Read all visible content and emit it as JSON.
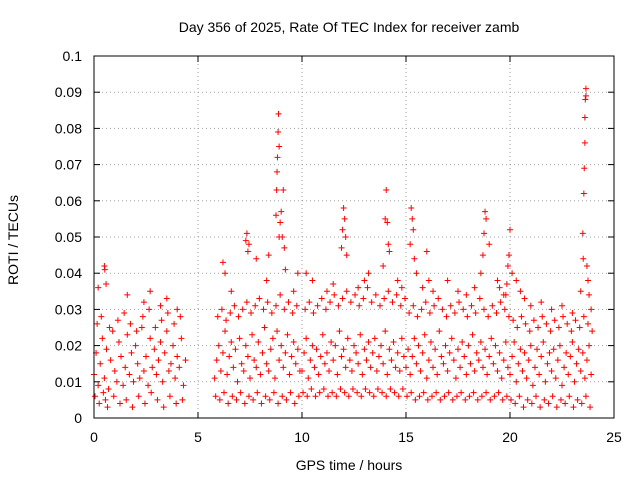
{
  "chart_data": {
    "type": "scatter",
    "title": "Day 356 of 2025, Rate Of TEC Index for receiver zamb",
    "xlabel": "GPS time / hours",
    "ylabel": "ROTI / TECUs",
    "xlim": [
      0,
      25
    ],
    "ylim": [
      0,
      0.1
    ],
    "x_ticks": [
      "0",
      "5",
      "10",
      "15",
      "20",
      "25"
    ],
    "y_ticks": [
      "0",
      "0.01",
      "0.02",
      "0.03",
      "0.04",
      "0.05",
      "0.06",
      "0.07",
      "0.08",
      "0.09",
      "0.1"
    ],
    "grid": true,
    "marker": "plus",
    "series": [
      {
        "color": "#ff0000",
        "x": [
          0.0,
          0.1,
          0.2,
          0.3,
          0.4,
          0.5,
          0.6,
          0.7,
          0.8,
          0.9,
          1.0,
          1.1,
          1.2,
          1.3,
          1.4,
          1.5,
          1.6,
          1.7,
          1.8,
          1.9,
          2.0,
          2.1,
          2.2,
          2.3,
          2.4,
          2.5,
          2.6,
          2.7,
          2.8,
          2.9,
          3.0,
          3.1,
          3.2,
          3.3,
          3.4,
          3.5,
          3.6,
          3.7,
          3.8,
          3.9,
          4.0,
          4.1,
          4.2,
          4.3,
          4.4,
          0.05,
          0.25,
          0.45,
          0.55,
          0.65,
          0.95,
          1.25,
          1.55,
          1.85,
          2.15,
          2.45,
          2.75,
          3.05,
          3.35,
          3.65,
          3.95,
          4.25,
          0.15,
          0.35,
          0.75,
          1.15,
          1.45,
          1.75,
          2.05,
          2.35,
          2.65,
          2.95,
          3.25,
          3.55,
          3.85,
          4.15,
          0.2,
          0.5,
          0.52,
          0.58,
          1.6,
          2.4,
          2.7,
          3.2,
          3.5,
          4.0,
          5.8,
          5.9,
          6.0,
          6.1,
          6.2,
          6.3,
          6.4,
          6.5,
          6.6,
          6.7,
          6.8,
          6.9,
          7.0,
          7.1,
          7.2,
          7.3,
          7.4,
          7.5,
          7.6,
          7.7,
          7.8,
          7.9,
          8.0,
          8.1,
          8.2,
          8.3,
          8.4,
          8.5,
          8.6,
          8.7,
          8.8,
          8.9,
          9.0,
          9.1,
          9.2,
          9.3,
          9.4,
          9.5,
          9.6,
          9.7,
          9.8,
          9.9,
          5.85,
          6.05,
          6.25,
          6.45,
          6.65,
          6.85,
          7.05,
          7.25,
          7.45,
          7.65,
          7.85,
          8.05,
          8.25,
          8.45,
          8.65,
          8.85,
          9.05,
          9.25,
          9.45,
          9.65,
          9.85,
          5.95,
          6.15,
          6.35,
          6.55,
          6.75,
          6.95,
          7.15,
          7.35,
          7.55,
          7.75,
          7.95,
          8.15,
          8.35,
          8.55,
          8.75,
          8.95,
          9.15,
          9.35,
          9.55,
          9.75,
          6.2,
          6.3,
          6.6,
          7.3,
          7.35,
          7.4,
          7.45,
          7.8,
          8.3,
          8.4,
          8.75,
          8.78,
          8.8,
          8.82,
          8.85,
          8.87,
          8.9,
          8.9,
          8.95,
          9.0,
          9.05,
          9.1,
          9.15,
          9.2,
          9.6,
          9.8,
          10.0,
          10.1,
          10.2,
          10.3,
          10.4,
          10.5,
          10.6,
          10.7,
          10.8,
          10.9,
          11.0,
          11.1,
          11.2,
          11.3,
          11.4,
          11.5,
          11.6,
          11.7,
          11.8,
          11.9,
          12.0,
          12.1,
          12.2,
          12.3,
          12.4,
          12.5,
          12.6,
          12.7,
          12.8,
          12.9,
          13.0,
          13.1,
          13.2,
          13.3,
          13.4,
          13.5,
          13.6,
          13.7,
          13.8,
          13.9,
          14.0,
          14.1,
          14.2,
          14.3,
          14.4,
          14.5,
          14.6,
          14.7,
          14.8,
          14.9,
          10.05,
          10.25,
          10.45,
          10.65,
          10.85,
          11.05,
          11.25,
          11.45,
          11.65,
          11.85,
          12.05,
          12.25,
          12.45,
          12.65,
          12.85,
          13.05,
          13.25,
          13.45,
          13.65,
          13.85,
          14.05,
          14.25,
          14.45,
          14.65,
          14.85,
          10.15,
          10.35,
          10.55,
          10.75,
          10.95,
          11.15,
          11.35,
          11.55,
          11.75,
          11.95,
          12.15,
          12.35,
          12.55,
          12.75,
          12.95,
          13.15,
          13.35,
          13.55,
          13.75,
          13.95,
          14.15,
          14.35,
          14.55,
          14.75,
          14.95,
          10.2,
          10.5,
          11.2,
          11.5,
          11.9,
          11.95,
          12.0,
          12.05,
          12.1,
          12.15,
          12.7,
          13.0,
          13.2,
          13.9,
          14.0,
          14.05,
          14.1,
          14.15,
          14.2,
          14.6,
          14.8,
          15.0,
          15.1,
          15.2,
          15.3,
          15.4,
          15.5,
          15.6,
          15.7,
          15.8,
          15.9,
          16.0,
          16.1,
          16.2,
          16.3,
          16.4,
          16.5,
          16.6,
          16.7,
          16.8,
          16.9,
          17.0,
          17.1,
          17.2,
          17.3,
          17.4,
          17.5,
          17.6,
          17.7,
          17.8,
          17.9,
          18.0,
          18.1,
          18.2,
          18.3,
          18.4,
          18.5,
          18.6,
          18.7,
          18.8,
          18.9,
          19.0,
          19.1,
          19.2,
          19.3,
          19.4,
          19.5,
          19.6,
          19.7,
          19.8,
          19.9,
          15.05,
          15.25,
          15.45,
          15.65,
          15.85,
          16.05,
          16.25,
          16.45,
          16.65,
          16.85,
          17.05,
          17.25,
          17.45,
          17.65,
          17.85,
          18.05,
          18.25,
          18.45,
          18.65,
          18.85,
          19.05,
          19.25,
          19.45,
          19.65,
          19.85,
          15.15,
          15.35,
          15.55,
          15.75,
          15.95,
          16.15,
          16.35,
          16.55,
          16.75,
          16.95,
          17.15,
          17.35,
          17.55,
          17.75,
          17.95,
          18.15,
          18.35,
          18.55,
          18.75,
          18.95,
          19.15,
          19.35,
          19.55,
          19.75,
          19.95,
          15.2,
          15.25,
          15.3,
          15.35,
          15.4,
          15.5,
          15.8,
          16.0,
          16.1,
          16.3,
          17.0,
          17.5,
          17.9,
          18.3,
          18.6,
          18.7,
          18.75,
          18.8,
          18.85,
          19.0,
          19.4,
          19.5,
          19.7,
          20.0,
          20.1,
          20.2,
          20.3,
          20.4,
          20.5,
          20.6,
          20.7,
          20.8,
          20.9,
          21.0,
          21.1,
          21.2,
          21.3,
          21.4,
          21.5,
          21.6,
          21.7,
          21.8,
          21.9,
          22.0,
          22.1,
          22.2,
          22.3,
          22.4,
          22.5,
          22.6,
          22.7,
          22.8,
          22.9,
          23.0,
          23.1,
          23.2,
          23.3,
          23.4,
          23.5,
          23.6,
          23.7,
          23.8,
          23.9,
          20.05,
          20.25,
          20.45,
          20.65,
          20.85,
          21.05,
          21.25,
          21.45,
          21.65,
          21.85,
          22.05,
          22.25,
          22.45,
          22.65,
          22.85,
          23.05,
          23.25,
          23.45,
          23.65,
          23.85,
          20.15,
          20.35,
          20.55,
          20.75,
          20.95,
          21.15,
          21.35,
          21.55,
          21.75,
          21.95,
          22.15,
          22.35,
          22.55,
          22.75,
          22.95,
          23.15,
          23.35,
          23.55,
          23.75,
          23.95,
          19.8,
          19.85,
          19.9,
          19.95,
          20.0,
          20.1,
          20.3,
          20.5,
          20.7,
          21.0,
          21.5,
          22.0,
          22.5,
          23.0,
          23.4,
          23.5,
          23.52,
          23.55,
          23.57,
          23.6,
          23.6,
          23.62,
          23.65,
          23.65,
          23.7,
          23.75,
          23.8,
          23.9
        ],
        "y": [
          0.012,
          0.018,
          0.009,
          0.015,
          0.022,
          0.011,
          0.019,
          0.008,
          0.016,
          0.024,
          0.013,
          0.01,
          0.021,
          0.017,
          0.009,
          0.014,
          0.023,
          0.012,
          0.018,
          0.01,
          0.02,
          0.015,
          0.011,
          0.025,
          0.013,
          0.017,
          0.009,
          0.022,
          0.014,
          0.019,
          0.012,
          0.016,
          0.021,
          0.01,
          0.018,
          0.024,
          0.013,
          0.015,
          0.02,
          0.011,
          0.017,
          0.014,
          0.022,
          0.009,
          0.016,
          0.006,
          0.004,
          0.007,
          0.005,
          0.003,
          0.006,
          0.004,
          0.005,
          0.003,
          0.006,
          0.004,
          0.007,
          0.005,
          0.003,
          0.006,
          0.004,
          0.005,
          0.026,
          0.028,
          0.025,
          0.027,
          0.029,
          0.026,
          0.024,
          0.028,
          0.03,
          0.025,
          0.027,
          0.029,
          0.026,
          0.028,
          0.036,
          0.042,
          0.041,
          0.037,
          0.034,
          0.032,
          0.035,
          0.031,
          0.033,
          0.03,
          0.011,
          0.016,
          0.02,
          0.013,
          0.018,
          0.024,
          0.012,
          0.017,
          0.021,
          0.014,
          0.019,
          0.01,
          0.022,
          0.015,
          0.013,
          0.02,
          0.017,
          0.011,
          0.023,
          0.016,
          0.014,
          0.021,
          0.012,
          0.018,
          0.025,
          0.015,
          0.013,
          0.019,
          0.022,
          0.011,
          0.024,
          0.016,
          0.02,
          0.014,
          0.018,
          0.023,
          0.012,
          0.017,
          0.021,
          0.015,
          0.019,
          0.013,
          0.006,
          0.005,
          0.007,
          0.004,
          0.006,
          0.005,
          0.007,
          0.004,
          0.006,
          0.005,
          0.007,
          0.004,
          0.006,
          0.005,
          0.007,
          0.004,
          0.006,
          0.005,
          0.007,
          0.004,
          0.006,
          0.028,
          0.03,
          0.027,
          0.029,
          0.031,
          0.028,
          0.03,
          0.032,
          0.029,
          0.031,
          0.033,
          0.03,
          0.032,
          0.029,
          0.031,
          0.034,
          0.03,
          0.032,
          0.029,
          0.031,
          0.043,
          0.04,
          0.035,
          0.049,
          0.051,
          0.046,
          0.048,
          0.044,
          0.038,
          0.045,
          0.056,
          0.063,
          0.068,
          0.072,
          0.079,
          0.084,
          0.075,
          0.05,
          0.054,
          0.057,
          0.05,
          0.063,
          0.047,
          0.041,
          0.035,
          0.04,
          0.013,
          0.018,
          0.022,
          0.011,
          0.016,
          0.02,
          0.014,
          0.019,
          0.012,
          0.017,
          0.023,
          0.015,
          0.018,
          0.013,
          0.021,
          0.016,
          0.02,
          0.012,
          0.024,
          0.017,
          0.019,
          0.014,
          0.022,
          0.016,
          0.013,
          0.02,
          0.018,
          0.015,
          0.023,
          0.012,
          0.019,
          0.016,
          0.021,
          0.014,
          0.018,
          0.022,
          0.013,
          0.017,
          0.02,
          0.015,
          0.024,
          0.012,
          0.019,
          0.016,
          0.021,
          0.014,
          0.018,
          0.013,
          0.022,
          0.017,
          0.007,
          0.006,
          0.008,
          0.006,
          0.007,
          0.008,
          0.006,
          0.007,
          0.006,
          0.008,
          0.007,
          0.006,
          0.008,
          0.007,
          0.006,
          0.008,
          0.007,
          0.006,
          0.008,
          0.007,
          0.006,
          0.008,
          0.007,
          0.006,
          0.008,
          0.03,
          0.032,
          0.029,
          0.031,
          0.033,
          0.03,
          0.032,
          0.034,
          0.031,
          0.033,
          0.035,
          0.032,
          0.034,
          0.031,
          0.033,
          0.036,
          0.032,
          0.034,
          0.031,
          0.033,
          0.035,
          0.032,
          0.034,
          0.031,
          0.033,
          0.04,
          0.038,
          0.035,
          0.037,
          0.047,
          0.052,
          0.058,
          0.055,
          0.05,
          0.045,
          0.036,
          0.038,
          0.04,
          0.042,
          0.055,
          0.063,
          0.054,
          0.048,
          0.046,
          0.038,
          0.036,
          0.014,
          0.019,
          0.012,
          0.017,
          0.022,
          0.015,
          0.02,
          0.013,
          0.018,
          0.023,
          0.011,
          0.016,
          0.021,
          0.014,
          0.019,
          0.012,
          0.024,
          0.017,
          0.015,
          0.02,
          0.013,
          0.018,
          0.022,
          0.016,
          0.011,
          0.019,
          0.014,
          0.021,
          0.017,
          0.012,
          0.02,
          0.015,
          0.023,
          0.013,
          0.018,
          0.016,
          0.021,
          0.014,
          0.019,
          0.012,
          0.017,
          0.022,
          0.015,
          0.02,
          0.013,
          0.018,
          0.011,
          0.016,
          0.021,
          0.014,
          0.006,
          0.007,
          0.005,
          0.006,
          0.007,
          0.005,
          0.006,
          0.007,
          0.005,
          0.006,
          0.007,
          0.005,
          0.006,
          0.007,
          0.005,
          0.006,
          0.007,
          0.005,
          0.006,
          0.007,
          0.005,
          0.006,
          0.007,
          0.005,
          0.006,
          0.029,
          0.031,
          0.028,
          0.03,
          0.032,
          0.029,
          0.031,
          0.033,
          0.03,
          0.028,
          0.031,
          0.029,
          0.032,
          0.03,
          0.028,
          0.031,
          0.029,
          0.033,
          0.03,
          0.028,
          0.031,
          0.029,
          0.032,
          0.03,
          0.028,
          0.048,
          0.058,
          0.055,
          0.052,
          0.044,
          0.04,
          0.036,
          0.046,
          0.038,
          0.035,
          0.038,
          0.035,
          0.034,
          0.036,
          0.04,
          0.045,
          0.051,
          0.057,
          0.055,
          0.048,
          0.038,
          0.036,
          0.034,
          0.012,
          0.017,
          0.021,
          0.01,
          0.015,
          0.019,
          0.013,
          0.018,
          0.011,
          0.016,
          0.02,
          0.009,
          0.014,
          0.019,
          0.012,
          0.017,
          0.021,
          0.01,
          0.015,
          0.018,
          0.013,
          0.019,
          0.011,
          0.016,
          0.02,
          0.009,
          0.014,
          0.018,
          0.012,
          0.017,
          0.021,
          0.01,
          0.015,
          0.019,
          0.013,
          0.018,
          0.011,
          0.016,
          0.02,
          0.012,
          0.005,
          0.004,
          0.006,
          0.003,
          0.005,
          0.004,
          0.006,
          0.003,
          0.005,
          0.004,
          0.006,
          0.003,
          0.005,
          0.004,
          0.006,
          0.003,
          0.005,
          0.004,
          0.006,
          0.003,
          0.027,
          0.025,
          0.028,
          0.026,
          0.024,
          0.027,
          0.025,
          0.028,
          0.026,
          0.024,
          0.027,
          0.025,
          0.028,
          0.026,
          0.024,
          0.027,
          0.025,
          0.028,
          0.026,
          0.024,
          0.034,
          0.037,
          0.042,
          0.045,
          0.052,
          0.04,
          0.038,
          0.035,
          0.033,
          0.031,
          0.032,
          0.03,
          0.031,
          0.029,
          0.035,
          0.051,
          0.044,
          0.062,
          0.069,
          0.076,
          0.083,
          0.088,
          0.091,
          0.089,
          0.042,
          0.038,
          0.034,
          0.03
        ]
      }
    ]
  }
}
